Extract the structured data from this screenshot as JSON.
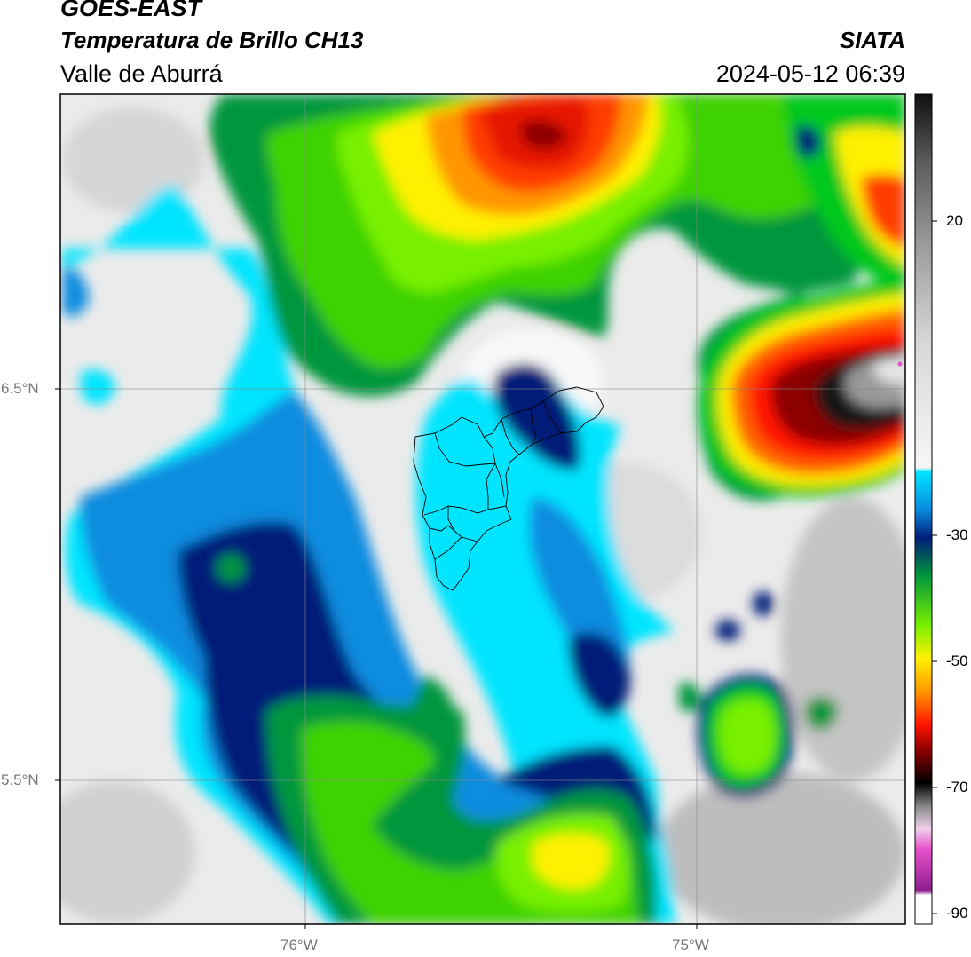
{
  "header": {
    "satellite": "GOES-EAST",
    "product": "Temperatura de Brillo CH13",
    "region": "Valle de Aburrá",
    "source": "SIATA",
    "datetime": "2024-05-12 06:39"
  },
  "axes": {
    "lat_labels": [
      "6.5°N",
      "5.5°N"
    ],
    "lon_labels": [
      "76°W",
      "75°W"
    ]
  },
  "colorbar": {
    "ticks": [
      "20",
      "-30",
      "-50",
      "-70",
      "-90"
    ],
    "colors": {
      "warm_gray": "#e8e8e8",
      "cyan": "#00e5ff",
      "blue": "#0050c8",
      "navy": "#001e78",
      "green": "#00c81e",
      "lime": "#78f000",
      "yellow": "#fff000",
      "orange": "#ff9600",
      "red": "#ff1400",
      "darkred": "#8c0000",
      "black": "#141414",
      "magenta": "#e650c8",
      "purple": "#8c1e8c"
    }
  }
}
